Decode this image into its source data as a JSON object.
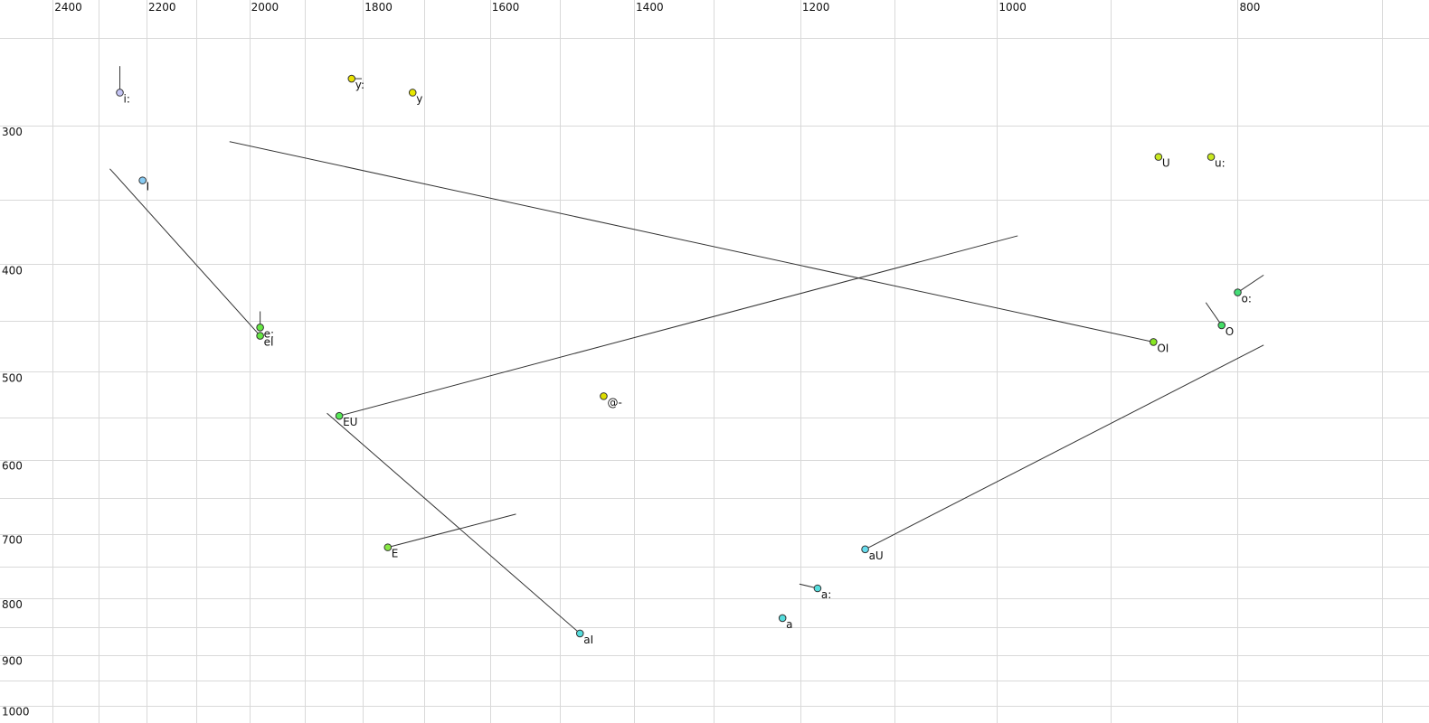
{
  "chart_data": {
    "type": "scatter",
    "xscale": "log",
    "yscale": "log",
    "x_reversed": true,
    "grid": true,
    "xlim": [
      2520,
      670
    ],
    "ylim": [
      231,
      1037
    ],
    "xticks": [
      2400,
      2200,
      2000,
      1800,
      1600,
      1400,
      1200,
      1000,
      800
    ],
    "x_minor_ticks": [
      2300,
      2100,
      1900,
      1700,
      1500,
      1300,
      1100,
      900,
      700
    ],
    "yticks": [
      300,
      400,
      500,
      600,
      700,
      800,
      900,
      1000
    ],
    "y_minor_ticks": [
      250,
      350,
      450,
      550,
      650,
      750,
      850,
      950
    ],
    "line_color": "#333333",
    "points": [
      {
        "label": "i:",
        "x": 2255,
        "y": 280,
        "color": "#c4c4f4",
        "end_x": 2255,
        "end_y": 265
      },
      {
        "label": "y:",
        "x": 1819,
        "y": 272,
        "color": "#e8e000",
        "end_x": 1802,
        "end_y": 272
      },
      {
        "label": "y",
        "x": 1719,
        "y": 280,
        "color": "#e8e800"
      },
      {
        "label": "I",
        "x": 2208,
        "y": 336,
        "color": "#88ccf4"
      },
      {
        "label": "e:",
        "x": 1980,
        "y": 456,
        "color": "#66e844",
        "end_x": 1980,
        "end_y": 441
      },
      {
        "label": "eI",
        "x": 1980,
        "y": 464,
        "color": "#66e844",
        "end_x": 2276,
        "end_y": 328
      },
      {
        "label": "U",
        "x": 861,
        "y": 320,
        "color": "#c8e820"
      },
      {
        "label": "u:",
        "x": 820,
        "y": 320,
        "color": "#c8e820"
      },
      {
        "label": "o:",
        "x": 800,
        "y": 424,
        "color": "#44dd77",
        "end_x": 781,
        "end_y": 409
      },
      {
        "label": "O",
        "x": 812,
        "y": 454,
        "color": "#44dd66",
        "end_x": 824,
        "end_y": 433
      },
      {
        "label": "OI",
        "x": 865,
        "y": 470,
        "color": "#88e822",
        "end_x": 2037,
        "end_y": 310
      },
      {
        "label": "EU",
        "x": 1840,
        "y": 548,
        "color": "#55e855",
        "end_x": 981,
        "end_y": 377
      },
      {
        "label": "@-",
        "x": 1440,
        "y": 526,
        "color": "#dddd00"
      },
      {
        "label": "E",
        "x": 1759,
        "y": 720,
        "color": "#88e844",
        "end_x": 1562,
        "end_y": 672
      },
      {
        "label": "aI",
        "x": 1472,
        "y": 861,
        "color": "#55dddd",
        "end_x": 1861,
        "end_y": 545
      },
      {
        "label": "aU",
        "x": 1130,
        "y": 723,
        "color": "#66ddee",
        "end_x": 781,
        "end_y": 473
      },
      {
        "label": "a:",
        "x": 1181,
        "y": 784,
        "color": "#55dddd",
        "end_x": 1201,
        "end_y": 777
      },
      {
        "label": "a",
        "x": 1220,
        "y": 834,
        "color": "#55dddd"
      }
    ]
  }
}
